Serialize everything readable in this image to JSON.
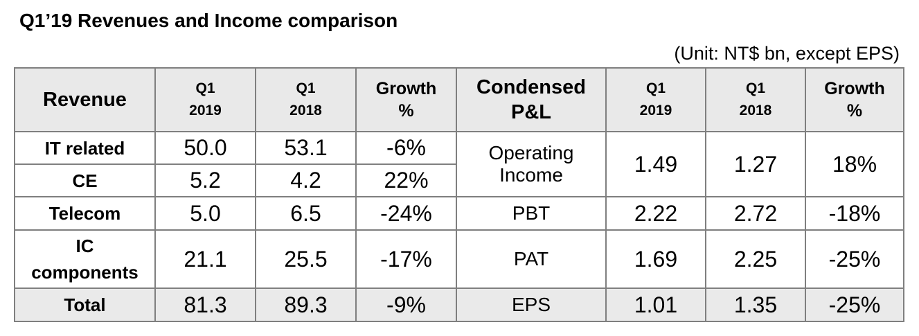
{
  "title": "Q1’19 Revenues and Income comparison",
  "unit_note": "(Unit: NT$ bn, except EPS)",
  "header": {
    "revenue": "Revenue",
    "q1_2019_line1": "Q1",
    "q1_2019_line2": "2019",
    "q1_2018_line1": "Q1",
    "q1_2018_line2": "2018",
    "growth_line1": "Growth",
    "growth_line2": "%",
    "pl_line1": "Condensed",
    "pl_line2": "P&L"
  },
  "revenue_rows": [
    {
      "label": "IT related",
      "q1_2019": "50.0",
      "q1_2018": "53.1",
      "growth": "-6%"
    },
    {
      "label": "CE",
      "q1_2019": "5.2",
      "q1_2018": "4.2",
      "growth": "22%"
    },
    {
      "label": "Telecom",
      "q1_2019": "5.0",
      "q1_2018": "6.5",
      "growth": "-24%"
    },
    {
      "label_line1": "IC",
      "label_line2": "components",
      "q1_2019": "21.1",
      "q1_2018": "25.5",
      "growth": "-17%"
    },
    {
      "label": "Total",
      "q1_2019": "81.3",
      "q1_2018": "89.3",
      "growth": "-9%"
    }
  ],
  "pl_rows": [
    {
      "label_line1": "Operating",
      "label_line2": "Income",
      "q1_2019": "1.49",
      "q1_2018": "1.27",
      "growth": "18%"
    },
    {
      "label": "PBT",
      "q1_2019": "2.22",
      "q1_2018": "2.72",
      "growth": "-18%"
    },
    {
      "label": "PAT",
      "q1_2019": "1.69",
      "q1_2018": "2.25",
      "growth": "-25%"
    },
    {
      "label": "EPS",
      "q1_2019": "1.01",
      "q1_2018": "1.35",
      "growth": "-25%"
    }
  ]
}
